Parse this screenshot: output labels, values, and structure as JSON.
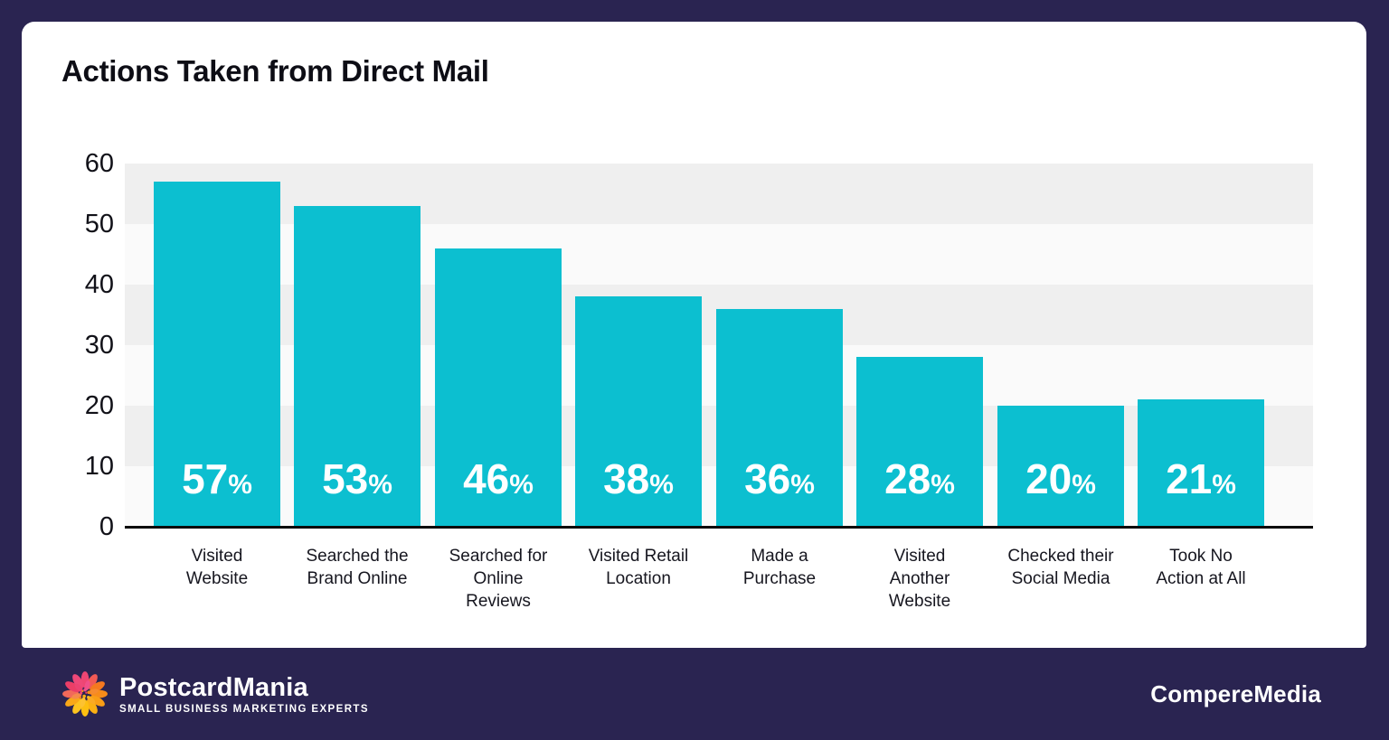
{
  "title": "Actions Taken from Direct Mail",
  "chart_data": {
    "type": "bar",
    "title": "Actions Taken from Direct Mail",
    "categories": [
      "Visited Website",
      "Searched the Brand Online",
      "Searched for Online Reviews",
      "Visited Retail Location",
      "Made a Purchase",
      "Visited Another Website",
      "Checked their Social Media",
      "Took No Action at All"
    ],
    "category_display": [
      "Visited\nWebsite",
      "Searched the\nBrand Online",
      "Searched for\nOnline\nReviews",
      "Visited Retail\nLocation",
      "Made a\nPurchase",
      "Visited\nAnother\nWebsite",
      "Checked their\nSocial Media",
      "Took No\nAction at All"
    ],
    "values": [
      57,
      53,
      46,
      38,
      36,
      28,
      20,
      21
    ],
    "value_labels": [
      "57%",
      "53%",
      "46%",
      "38%",
      "36%",
      "28%",
      "20%",
      "21%"
    ],
    "xlabel": "",
    "ylabel": "",
    "ylim": [
      0,
      60
    ],
    "y_ticks": [
      0,
      10,
      20,
      30,
      40,
      50,
      60
    ],
    "legend": null,
    "grid": "horizontal-bands",
    "band_colors": [
      "#efefef",
      "#fafafa"
    ],
    "bar_color": "#0cbfd0",
    "bar_label_color": "#ffffff",
    "axis_line_color": "#0b0b0b"
  },
  "colors": {
    "frame_background": "#2a2451",
    "panel_background": "#ffffff",
    "title_text": "#0d0d15"
  },
  "footer": {
    "logo_text": "PostcardMania",
    "logo_tagline": "SMALL BUSINESS MARKETING EXPERTS",
    "credit": "CompereMedia"
  }
}
